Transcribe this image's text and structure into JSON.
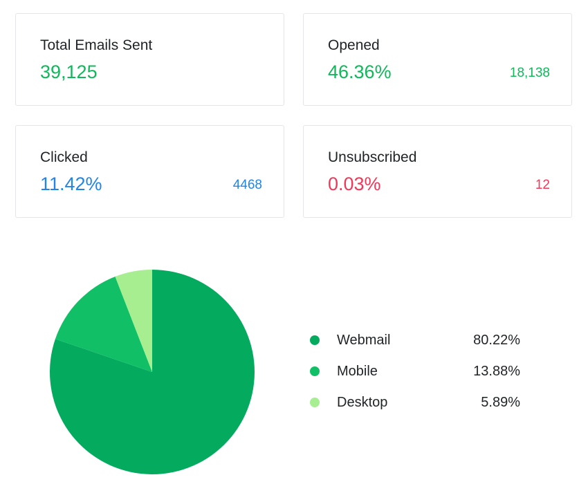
{
  "stats": [
    {
      "label": "Total Emails Sent",
      "value": "39,125",
      "count": "",
      "color": "#12b75b"
    },
    {
      "label": "Opened",
      "value": "46.36%",
      "count": "18,138",
      "color": "#12b75b"
    },
    {
      "label": "Clicked",
      "value": "11.42%",
      "count": "4468",
      "color": "#2384e8"
    },
    {
      "label": "Unsubscribed",
      "value": "0.03%",
      "count": "12",
      "color": "#f0395a"
    }
  ],
  "chart_data": {
    "type": "pie",
    "categories": [
      "Webmail",
      "Mobile",
      "Desktop"
    ],
    "values": [
      80.22,
      13.88,
      5.89
    ],
    "labels": [
      "80.22%",
      "13.88%",
      "5.89%"
    ],
    "colors": [
      "#04ab5f",
      "#11c066",
      "#a7ee90"
    ],
    "title": "",
    "legend": "right"
  }
}
